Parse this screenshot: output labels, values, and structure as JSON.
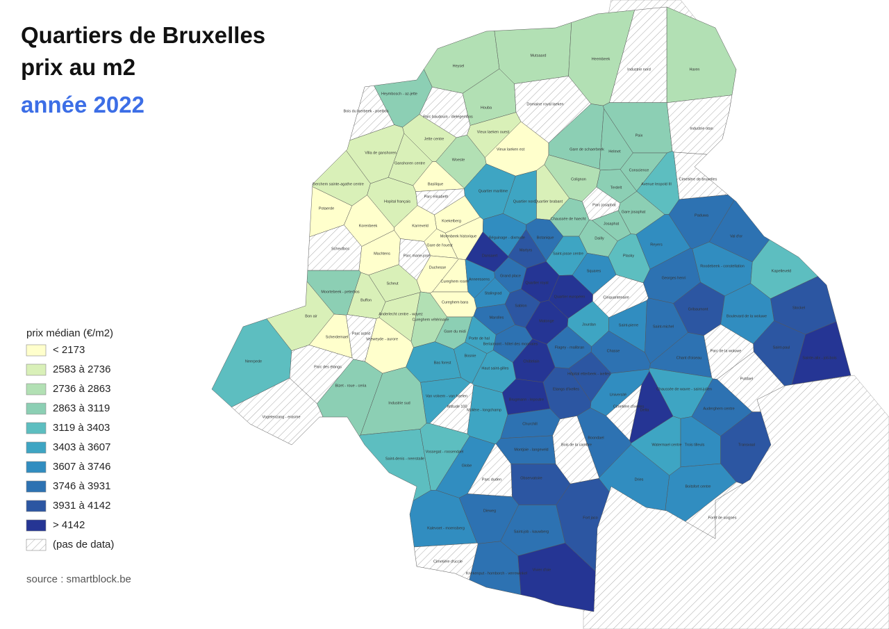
{
  "header": {
    "title_line1": "Quartiers de Bruxelles",
    "title_line2": "prix au m2",
    "subtitle": "année 2022"
  },
  "legend": {
    "title": "prix médian (€/m2)",
    "items": [
      {
        "label": "< 2173",
        "color": "#ffffcc"
      },
      {
        "label": "2583 à 2736",
        "color": "#d9f0b8"
      },
      {
        "label": "2736 à 2863",
        "color": "#b2e0b4"
      },
      {
        "label": "2863 à 3119",
        "color": "#8ccfb4"
      },
      {
        "label": "3119 à 3403",
        "color": "#5dbec0"
      },
      {
        "label": "3403 à 3607",
        "color": "#3ea5c3"
      },
      {
        "label": "3607 à 3746",
        "color": "#318dc0"
      },
      {
        "label": "3746 à 3931",
        "color": "#2d72b2"
      },
      {
        "label": "3931 à 4142",
        "color": "#2c56a2"
      },
      {
        "label": "> 4142",
        "color": "#253594"
      },
      {
        "label": "(pas de data)",
        "hatched": true
      }
    ]
  },
  "source": "source : smartblock.be",
  "neighborhoods": [
    {
      "name": "Heysel",
      "color": "#b2e0b4"
    },
    {
      "name": "Mutsaard",
      "color": "#b2e0b4"
    },
    {
      "name": "Heembeek",
      "color": "#b2e0b4"
    },
    {
      "name": "Haren",
      "color": "#b2e0b4"
    },
    {
      "name": "Heymbosch - az-jette",
      "color": "#8ccfb4"
    },
    {
      "name": "Houba",
      "color": "#b2e0b4"
    },
    {
      "name": "Vieux laeken ouest",
      "color": "#d9f0b8"
    },
    {
      "name": "Vieux laeken est",
      "color": "#ffffcc"
    },
    {
      "name": "Jette centre",
      "color": "#d9f0b8"
    },
    {
      "name": "Villa de ganshoren",
      "color": "#d9f0b8"
    },
    {
      "name": "Ganshoren centre",
      "color": "#d9f0b8"
    },
    {
      "name": "Woeste",
      "color": "#b2e0b4"
    },
    {
      "name": "Berchem sainte-agathe centre",
      "color": "#d9f0b8"
    },
    {
      "name": "Basilique",
      "color": "#ffffcc"
    },
    {
      "name": "Hopital français",
      "color": "#d9f0b8"
    },
    {
      "name": "Potaerde",
      "color": "#ffffcc"
    },
    {
      "name": "Koekelberg",
      "color": "#ffffcc"
    },
    {
      "name": "Korenbeek",
      "color": "#ffffcc"
    },
    {
      "name": "Karreveld",
      "color": "#ffffcc"
    },
    {
      "name": "Molenbeek historique",
      "color": "#ffffcc"
    },
    {
      "name": "Gare de l'ouest",
      "color": "#ffffcc"
    },
    {
      "name": "Machtens",
      "color": "#ffffcc"
    },
    {
      "name": "Duchesse",
      "color": "#ffffcc"
    },
    {
      "name": "Quartier maritime",
      "color": "#3ea5c3"
    },
    {
      "name": "Quartier nord",
      "color": "#3ea5c3"
    },
    {
      "name": "Quartier brabant",
      "color": "#d9f0b8"
    },
    {
      "name": "Gare de schaerbeek",
      "color": "#8ccfb4"
    },
    {
      "name": "Helmet",
      "color": "#8ccfb4"
    },
    {
      "name": "Paix",
      "color": "#8ccfb4"
    },
    {
      "name": "Colignon",
      "color": "#b2e0b4"
    },
    {
      "name": "Terdelt",
      "color": "#8ccfb4"
    },
    {
      "name": "Conscience",
      "color": "#8ccfb4"
    },
    {
      "name": "Avenue leopold III",
      "color": "#5dbec0"
    },
    {
      "name": "Chaussée de haecht",
      "color": "#8ccfb4"
    },
    {
      "name": "Josaphat",
      "color": "#8ccfb4"
    },
    {
      "name": "Gare josaphat",
      "color": "#8ccfb4"
    },
    {
      "name": "Dailly",
      "color": "#8ccfb4"
    },
    {
      "name": "Plasky",
      "color": "#5dbec0"
    },
    {
      "name": "Saint-josse centre",
      "color": "#3ea5c3"
    },
    {
      "name": "Béguinage - dixmude",
      "color": "#318dc0"
    },
    {
      "name": "Martyrs",
      "color": "#2c56a2"
    },
    {
      "name": "Botanique",
      "color": "#2d72b2"
    },
    {
      "name": "Dansaert",
      "color": "#253594"
    },
    {
      "name": "Grand place",
      "color": "#2d72b2"
    },
    {
      "name": "Quartier royal",
      "color": "#253594"
    },
    {
      "name": "Squares",
      "color": "#318dc0"
    },
    {
      "name": "Reyers",
      "color": "#318dc0"
    },
    {
      "name": "Paduwa",
      "color": "#2d72b2"
    },
    {
      "name": "Val d'or",
      "color": "#2d72b2"
    },
    {
      "name": "Georges henri",
      "color": "#2d72b2"
    },
    {
      "name": "Roodebeek - constellation",
      "color": "#318dc0"
    },
    {
      "name": "Kapelleveld",
      "color": "#5dbec0"
    },
    {
      "name": "Moortebeek - peterbos",
      "color": "#8ccfb4"
    },
    {
      "name": "Scheut",
      "color": "#d9f0b8"
    },
    {
      "name": "Buffon",
      "color": "#d9f0b8"
    },
    {
      "name": "Cureghem rosee",
      "color": "#ffffcc"
    },
    {
      "name": "Anneessens",
      "color": "#318dc0"
    },
    {
      "name": "Stalingrad",
      "color": "#318dc0"
    },
    {
      "name": "Sablon",
      "color": "#2c56a2"
    },
    {
      "name": "Quartier européen",
      "color": "#253594"
    },
    {
      "name": "Gribaumont",
      "color": "#2c56a2"
    },
    {
      "name": "Stockel",
      "color": "#2c56a2"
    },
    {
      "name": "Marolles",
      "color": "#2d72b2"
    },
    {
      "name": "Matonge",
      "color": "#253594"
    },
    {
      "name": "Jourdan",
      "color": "#3ea5c3"
    },
    {
      "name": "Saint-pierre",
      "color": "#318dc0"
    },
    {
      "name": "Saint-michel",
      "color": "#2d72b2"
    },
    {
      "name": "Boulevard de la woluwe",
      "color": "#318dc0"
    },
    {
      "name": "Sainte-alix - joli-bois",
      "color": "#253594"
    },
    {
      "name": "Saint-paul",
      "color": "#2c56a2"
    },
    {
      "name": "Anderlecht centre - wayez",
      "color": "#d9f0b8"
    },
    {
      "name": "Cureghem bara",
      "color": "#ffffcc"
    },
    {
      "name": "Cureghem vétérinaire",
      "color": "#b2e0b4"
    },
    {
      "name": "Bon air",
      "color": "#d9f0b8"
    },
    {
      "name": "Scherdemael",
      "color": "#ffffcc"
    },
    {
      "name": "Veeweyde - aurore",
      "color": "#ffffcc"
    },
    {
      "name": "Gare du midi",
      "color": "#8ccfb4"
    },
    {
      "name": "Porte de hal",
      "color": "#3ea5c3"
    },
    {
      "name": "Berlaimont - hôtel des monnaies",
      "color": "#2d72b2"
    },
    {
      "name": "Flagey - malibran",
      "color": "#2d72b2"
    },
    {
      "name": "Chasse",
      "color": "#2d72b2"
    },
    {
      "name": "Chant d'oiseau",
      "color": "#2d72b2"
    },
    {
      "name": "Bosnie",
      "color": "#3ea5c3"
    },
    {
      "name": "Châtelain",
      "color": "#253594"
    },
    {
      "name": "Hôpital etterbeek - ixelles",
      "color": "#2c56a2"
    },
    {
      "name": "Haut saint-gilles",
      "color": "#3ea5c3"
    },
    {
      "name": "Bas forest",
      "color": "#3ea5c3"
    },
    {
      "name": "Neerpede",
      "color": "#5dbec0"
    },
    {
      "name": "Bizet - roue - ceria",
      "color": "#8ccfb4"
    },
    {
      "name": "Chaussée de wavre - saint-julien",
      "color": "#3ea5c3"
    },
    {
      "name": "Université",
      "color": "#318dc0"
    },
    {
      "name": "Etangs d'ixelles",
      "color": "#2c56a2"
    },
    {
      "name": "Brugmann - lepoutre",
      "color": "#253594"
    },
    {
      "name": "Van volxem - van haelen",
      "color": "#3ea5c3"
    },
    {
      "name": "Delta",
      "color": "#253594"
    },
    {
      "name": "Auderghem centre",
      "color": "#2d72b2"
    },
    {
      "name": "Industrie sud",
      "color": "#8ccfb4"
    },
    {
      "name": "Molière - longchamp",
      "color": "#3ea5c3"
    },
    {
      "name": "Churchill",
      "color": "#2d72b2"
    },
    {
      "name": "Transvaal",
      "color": "#2c56a2"
    },
    {
      "name": "Boondael",
      "color": "#2d72b2"
    },
    {
      "name": "Watermael centre",
      "color": "#3ea5c3"
    },
    {
      "name": "Trois tilleuls",
      "color": "#318dc0"
    },
    {
      "name": "Saint-denis - neerstalle",
      "color": "#5dbec0"
    },
    {
      "name": "Vossegat - roosendael",
      "color": "#5dbec0"
    },
    {
      "name": "Montjoie - langeveld",
      "color": "#2d72b2"
    },
    {
      "name": "Globe",
      "color": "#318dc0"
    },
    {
      "name": "Observatoire",
      "color": "#2c56a2"
    },
    {
      "name": "Dries",
      "color": "#318dc0"
    },
    {
      "name": "Boitsfort centre",
      "color": "#318dc0"
    },
    {
      "name": "Kalevoet - moensberg",
      "color": "#318dc0"
    },
    {
      "name": "Dieweg",
      "color": "#2d72b2"
    },
    {
      "name": "Saint-job - kauwberg",
      "color": "#2d72b2"
    },
    {
      "name": "Fort jaco",
      "color": "#2c56a2"
    },
    {
      "name": "Kriekenput - homborch - verrewinkel",
      "color": "#2d72b2"
    },
    {
      "name": "Vivier d'oie",
      "color": "#253594"
    }
  ],
  "no_data_areas": [
    {
      "name": "Bois du laerbeek - poelbos"
    },
    {
      "name": "Domaine royal laeken"
    },
    {
      "name": "Parc baudouin - dielegembos"
    },
    {
      "name": "Industrie nord"
    },
    {
      "name": "Industrie otan"
    },
    {
      "name": "Cimetière de bruxelles"
    },
    {
      "name": "Parc josaphat"
    },
    {
      "name": "Parc elisabeth"
    },
    {
      "name": "Scheutbos"
    },
    {
      "name": "Parc astrid"
    },
    {
      "name": "Parc des étangs"
    },
    {
      "name": "Vogelenzang - erasme"
    },
    {
      "name": "Altitude 100"
    },
    {
      "name": "Parc duden"
    },
    {
      "name": "Bois de la cambre"
    },
    {
      "name": "Cinquantenaire"
    },
    {
      "name": "Parc de la woluwe"
    },
    {
      "name": "Putdael"
    },
    {
      "name": "Forêt de soignes"
    },
    {
      "name": "Cimetière d'ixelles"
    },
    {
      "name": "Cimetière d'uccle"
    },
    {
      "name": "Parc marie-josé"
    }
  ]
}
